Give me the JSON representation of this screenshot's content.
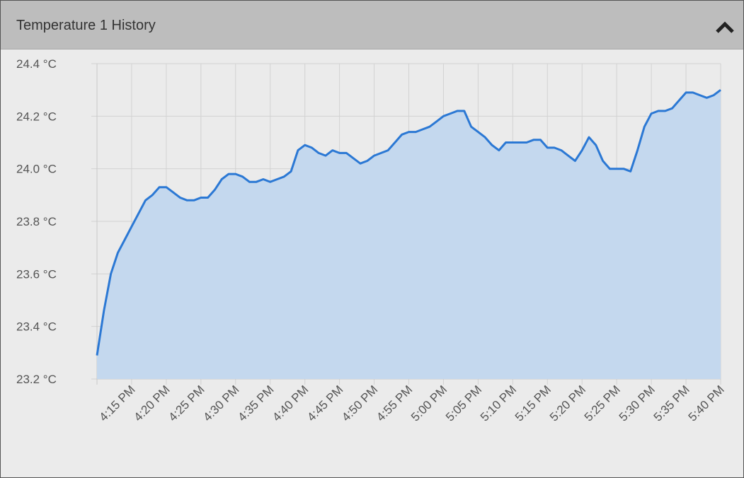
{
  "panel_title": "Temperature 1 History",
  "chart_data": {
    "type": "area",
    "series": [
      {
        "name": "Temperature 1",
        "color": "#2b78d4",
        "fill": "#c4d8ee",
        "values": [
          23.29,
          23.46,
          23.6,
          23.68,
          23.73,
          23.78,
          23.83,
          23.88,
          23.9,
          23.93,
          23.93,
          23.91,
          23.89,
          23.88,
          23.88,
          23.89,
          23.89,
          23.92,
          23.96,
          23.98,
          23.98,
          23.97,
          23.95,
          23.95,
          23.96,
          23.95,
          23.96,
          23.97,
          23.99,
          24.07,
          24.09,
          24.08,
          24.06,
          24.05,
          24.07,
          24.06,
          24.06,
          24.04,
          24.02,
          24.03,
          24.05,
          24.06,
          24.07,
          24.1,
          24.13,
          24.14,
          24.14,
          24.15,
          24.16,
          24.18,
          24.2,
          24.21,
          24.22,
          24.22,
          24.16,
          24.14,
          24.12,
          24.09,
          24.07,
          24.1,
          24.1,
          24.1,
          24.1,
          24.11,
          24.11,
          24.08,
          24.08,
          24.07,
          24.05,
          24.03,
          24.07,
          24.12,
          24.09,
          24.03,
          24.0,
          24.0,
          24.0,
          23.99,
          24.07,
          24.16,
          24.21,
          24.22,
          24.22,
          24.23,
          24.26,
          24.29,
          24.29,
          24.28,
          24.27,
          24.28,
          24.3
        ]
      }
    ],
    "x": [
      "4:10 PM",
      "4:11 PM",
      "4:12 PM",
      "4:13 PM",
      "4:14 PM",
      "4:15 PM",
      "4:16 PM",
      "4:17 PM",
      "4:18 PM",
      "4:19 PM",
      "4:20 PM",
      "4:21 PM",
      "4:22 PM",
      "4:23 PM",
      "4:24 PM",
      "4:25 PM",
      "4:26 PM",
      "4:27 PM",
      "4:28 PM",
      "4:29 PM",
      "4:30 PM",
      "4:31 PM",
      "4:32 PM",
      "4:33 PM",
      "4:34 PM",
      "4:35 PM",
      "4:36 PM",
      "4:37 PM",
      "4:38 PM",
      "4:39 PM",
      "4:40 PM",
      "4:41 PM",
      "4:42 PM",
      "4:43 PM",
      "4:44 PM",
      "4:45 PM",
      "4:46 PM",
      "4:47 PM",
      "4:48 PM",
      "4:49 PM",
      "4:50 PM",
      "4:51 PM",
      "4:52 PM",
      "4:53 PM",
      "4:54 PM",
      "4:55 PM",
      "4:56 PM",
      "4:57 PM",
      "4:58 PM",
      "4:59 PM",
      "5:00 PM",
      "5:01 PM",
      "5:02 PM",
      "5:03 PM",
      "5:04 PM",
      "5:05 PM",
      "5:06 PM",
      "5:07 PM",
      "5:08 PM",
      "5:09 PM",
      "5:10 PM",
      "5:11 PM",
      "5:12 PM",
      "5:13 PM",
      "5:14 PM",
      "5:15 PM",
      "5:16 PM",
      "5:17 PM",
      "5:18 PM",
      "5:19 PM",
      "5:20 PM",
      "5:21 PM",
      "5:22 PM",
      "5:23 PM",
      "5:24 PM",
      "5:25 PM",
      "5:26 PM",
      "5:27 PM",
      "5:28 PM",
      "5:29 PM",
      "5:30 PM",
      "5:31 PM",
      "5:32 PM",
      "5:33 PM",
      "5:34 PM",
      "5:35 PM",
      "5:36 PM",
      "5:37 PM",
      "5:38 PM",
      "5:39 PM",
      "5:40 PM"
    ],
    "xlim": [
      "4:10 PM",
      "5:40 PM"
    ],
    "xticks": [
      "4:15 PM",
      "4:20 PM",
      "4:25 PM",
      "4:30 PM",
      "4:35 PM",
      "4:40 PM",
      "4:45 PM",
      "4:50 PM",
      "4:55 PM",
      "5:00 PM",
      "5:05 PM",
      "5:10 PM",
      "5:15 PM",
      "5:20 PM",
      "5:25 PM",
      "5:30 PM",
      "5:35 PM",
      "5:40 PM"
    ],
    "ylim": [
      23.2,
      24.4
    ],
    "yticks": [
      {
        "value": 23.2,
        "label": "23.2 °C"
      },
      {
        "value": 23.4,
        "label": "23.4 °C"
      },
      {
        "value": 23.6,
        "label": "23.6 °C"
      },
      {
        "value": 23.8,
        "label": "23.8 °C"
      },
      {
        "value": 24.0,
        "label": "24.0 °C"
      },
      {
        "value": 24.2,
        "label": "24.2 °C"
      },
      {
        "value": 24.4,
        "label": "24.4 °C"
      }
    ],
    "grid": true
  }
}
